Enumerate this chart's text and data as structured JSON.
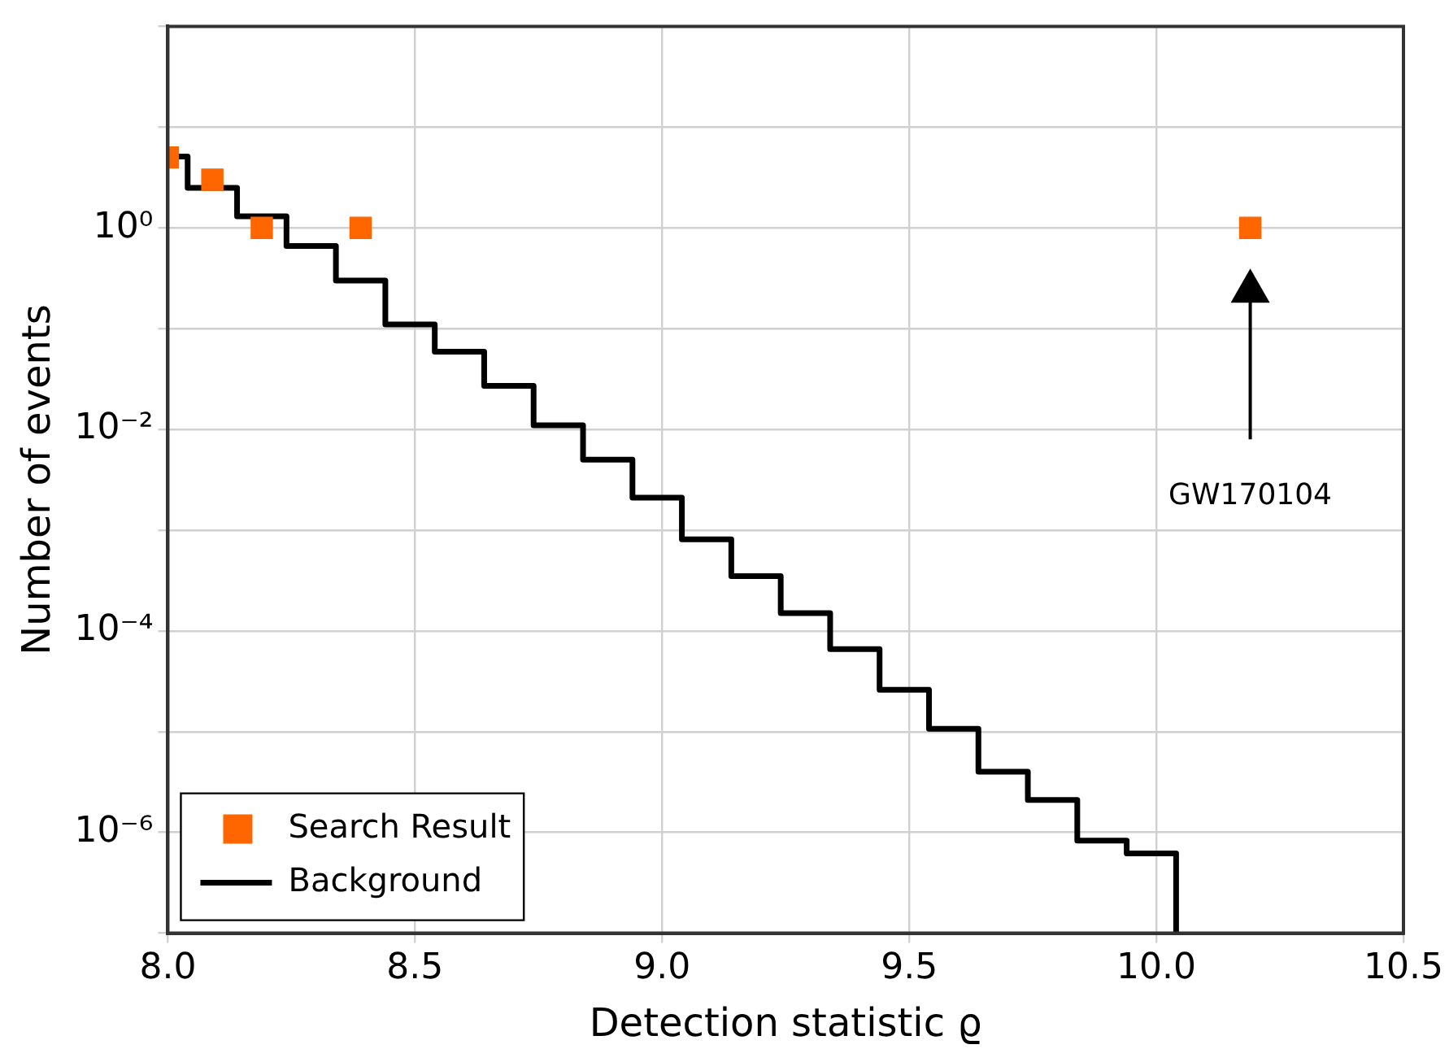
{
  "chart_data": {
    "type": "scatter",
    "xlabel": "Detection statistic ϱ",
    "ylabel": "Number of events",
    "log": "y",
    "grid": true,
    "legend": "bottom left",
    "xlim": [
      8,
      10.5
    ],
    "xticks": [
      {
        "value": 8,
        "label": "8.0"
      },
      {
        "value": 8.5,
        "label": "8.5"
      },
      {
        "value": 9,
        "label": "9.0"
      },
      {
        "value": 9.5,
        "label": "9.5"
      },
      {
        "value": 10,
        "label": "10.0"
      },
      {
        "value": 10.5,
        "label": "10.5"
      }
    ],
    "ylim": [
      1e-07,
      100
    ],
    "yticks": [
      {
        "value": 1e-07,
        "label": null
      },
      {
        "value": 1e-06,
        "label": "10⁻⁶"
      },
      {
        "value": 1e-05,
        "label": null
      },
      {
        "value": 0.0001,
        "label": "10⁻⁴"
      },
      {
        "value": 0.001,
        "label": null
      },
      {
        "value": 0.01,
        "label": "10⁻²"
      },
      {
        "value": 0.1,
        "label": null
      },
      {
        "value": 1,
        "label": "10⁰"
      },
      {
        "value": 10,
        "label": null
      },
      {
        "value": 100,
        "label": null
      }
    ],
    "annotations": [
      "GW170104"
    ],
    "series": [
      {
        "name": "Search Result",
        "marker": "square",
        "color": "#ff6600",
        "x": [
          8.0,
          8.09,
          8.19,
          8.39,
          10.19
        ],
        "values": [
          5,
          3,
          1,
          1,
          1
        ]
      },
      {
        "name": "Background",
        "type": "step",
        "marker": "none",
        "color": "#000000",
        "x": [
          8.0,
          8.04,
          8.14,
          8.24,
          8.34,
          8.44,
          8.54,
          8.64,
          8.74,
          8.84,
          8.94,
          9.04,
          9.14,
          9.24,
          9.34,
          9.44,
          9.54,
          9.64,
          9.74,
          9.84,
          9.94,
          10.04
        ],
        "values": [
          5.1,
          2.5,
          1.3,
          0.66,
          0.3,
          0.11,
          0.059,
          0.027,
          0.011,
          0.005,
          0.0021,
          0.00081,
          0.00035,
          0.00015,
          6.6e-05,
          2.6e-05,
          1.07e-05,
          4e-06,
          2.1e-06,
          8.3e-07,
          6.2e-07,
          1e-07
        ]
      }
    ]
  }
}
